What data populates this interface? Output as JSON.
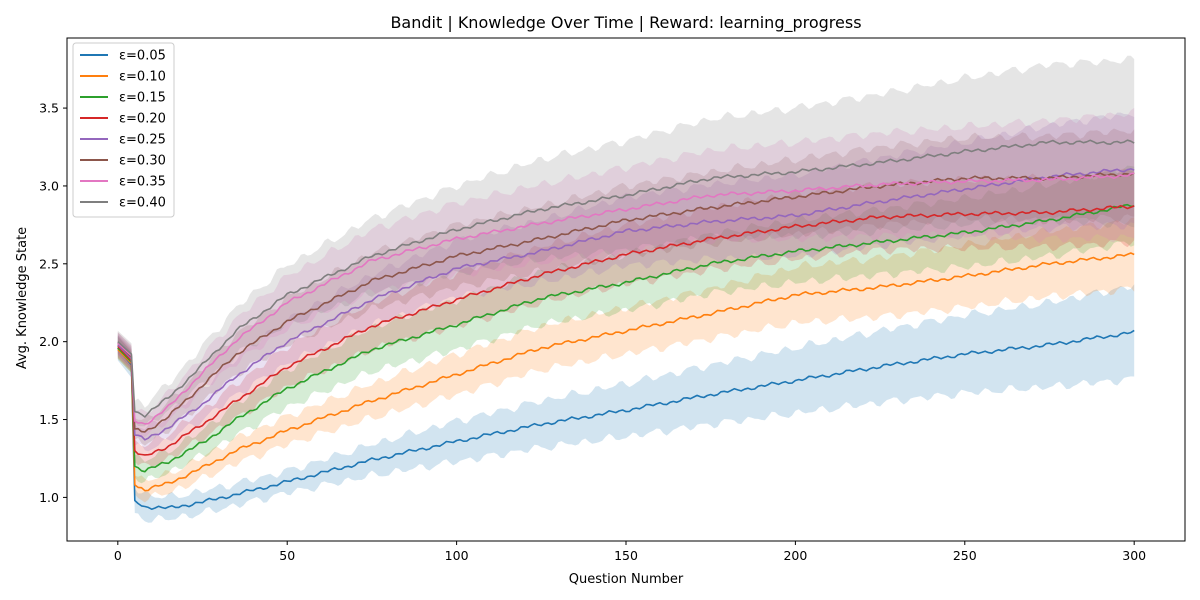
{
  "chart_data": {
    "type": "line",
    "title": "Bandit | Knowledge Over Time | Reward: learning_progress",
    "xlabel": "Question Number",
    "ylabel": "Avg. Knowledge State",
    "xlim": [
      -15,
      315
    ],
    "ylim": [
      0.72,
      3.95
    ],
    "x_ticks": [
      0,
      50,
      100,
      150,
      200,
      250,
      300
    ],
    "y_ticks": [
      1.0,
      1.5,
      2.0,
      2.5,
      3.0,
      3.5
    ],
    "y_tick_labels": [
      "1.0",
      "1.5",
      "2.0",
      "2.5",
      "3.0",
      "3.5"
    ],
    "legend_position": "top-left",
    "grid": false,
    "shaded_band": "mean ± spread per series (semi-transparent)",
    "series": [
      {
        "name": "ε=0.05",
        "color": "#1f77b4",
        "x": [
          0,
          4,
          5,
          8,
          15,
          25,
          35,
          50,
          75,
          100,
          125,
          150,
          175,
          200,
          225,
          250,
          275,
          300
        ],
        "values": [
          1.96,
          1.85,
          0.98,
          0.94,
          0.93,
          0.97,
          1.02,
          1.1,
          1.24,
          1.36,
          1.47,
          1.56,
          1.66,
          1.75,
          1.84,
          1.92,
          1.98,
          2.06
        ],
        "band": [
          0.08,
          0.08,
          0.08,
          0.08,
          0.07,
          0.07,
          0.07,
          0.07,
          0.1,
          0.13,
          0.15,
          0.17,
          0.19,
          0.21,
          0.23,
          0.25,
          0.27,
          0.3
        ]
      },
      {
        "name": "ε=0.10",
        "color": "#ff7f0e",
        "x": [
          0,
          4,
          5,
          8,
          15,
          25,
          35,
          50,
          75,
          100,
          125,
          150,
          175,
          200,
          225,
          250,
          275,
          300
        ],
        "values": [
          1.95,
          1.86,
          1.08,
          1.05,
          1.09,
          1.19,
          1.3,
          1.43,
          1.62,
          1.79,
          1.96,
          2.07,
          2.18,
          2.3,
          2.35,
          2.42,
          2.5,
          2.56
        ],
        "band": [
          0.06,
          0.06,
          0.06,
          0.06,
          0.06,
          0.07,
          0.08,
          0.09,
          0.11,
          0.13,
          0.14,
          0.15,
          0.16,
          0.18,
          0.19,
          0.2,
          0.21,
          0.22
        ]
      },
      {
        "name": "ε=0.15",
        "color": "#2ca02c",
        "x": [
          0,
          4,
          5,
          8,
          15,
          25,
          35,
          50,
          75,
          100,
          125,
          150,
          175,
          200,
          225,
          250,
          275,
          300
        ],
        "values": [
          1.96,
          1.87,
          1.2,
          1.17,
          1.23,
          1.35,
          1.5,
          1.7,
          1.95,
          2.11,
          2.28,
          2.38,
          2.5,
          2.58,
          2.64,
          2.7,
          2.78,
          2.88
        ],
        "band": [
          0.07,
          0.07,
          0.07,
          0.07,
          0.07,
          0.08,
          0.1,
          0.12,
          0.14,
          0.16,
          0.17,
          0.18,
          0.19,
          0.2,
          0.21,
          0.22,
          0.23,
          0.24
        ]
      },
      {
        "name": "ε=0.20",
        "color": "#d62728",
        "x": [
          0,
          4,
          5,
          8,
          15,
          25,
          35,
          50,
          75,
          100,
          125,
          150,
          175,
          200,
          225,
          250,
          275,
          300
        ],
        "values": [
          1.97,
          1.88,
          1.3,
          1.26,
          1.33,
          1.47,
          1.62,
          1.84,
          2.1,
          2.27,
          2.43,
          2.56,
          2.66,
          2.74,
          2.8,
          2.82,
          2.83,
          2.87
        ],
        "band": [
          0.07,
          0.07,
          0.07,
          0.07,
          0.08,
          0.09,
          0.11,
          0.13,
          0.15,
          0.17,
          0.18,
          0.19,
          0.2,
          0.21,
          0.21,
          0.22,
          0.22,
          0.23
        ]
      },
      {
        "name": "ε=0.25",
        "color": "#9467bd",
        "x": [
          0,
          4,
          5,
          8,
          15,
          25,
          35,
          50,
          75,
          100,
          125,
          150,
          175,
          200,
          225,
          250,
          275,
          300
        ],
        "values": [
          1.98,
          1.89,
          1.4,
          1.37,
          1.45,
          1.6,
          1.78,
          2.0,
          2.27,
          2.47,
          2.58,
          2.71,
          2.77,
          2.81,
          2.9,
          2.98,
          3.06,
          3.11
        ],
        "band": [
          0.07,
          0.07,
          0.07,
          0.07,
          0.08,
          0.1,
          0.12,
          0.14,
          0.16,
          0.18,
          0.2,
          0.22,
          0.24,
          0.26,
          0.28,
          0.3,
          0.33,
          0.36
        ]
      },
      {
        "name": "ε=0.30",
        "color": "#8c564b",
        "x": [
          0,
          4,
          5,
          8,
          15,
          25,
          35,
          50,
          75,
          100,
          125,
          150,
          175,
          200,
          225,
          250,
          275,
          300
        ],
        "values": [
          1.99,
          1.9,
          1.44,
          1.42,
          1.52,
          1.72,
          1.92,
          2.13,
          2.39,
          2.55,
          2.66,
          2.78,
          2.86,
          2.93,
          3.0,
          3.05,
          3.05,
          3.08
        ],
        "band": [
          0.07,
          0.07,
          0.07,
          0.07,
          0.09,
          0.11,
          0.13,
          0.15,
          0.18,
          0.2,
          0.21,
          0.22,
          0.23,
          0.24,
          0.25,
          0.26,
          0.27,
          0.28
        ]
      },
      {
        "name": "ε=0.35",
        "color": "#e377c2",
        "x": [
          0,
          4,
          5,
          8,
          15,
          25,
          35,
          50,
          75,
          100,
          125,
          150,
          175,
          200,
          225,
          250,
          275,
          300
        ],
        "values": [
          1.99,
          1.91,
          1.49,
          1.47,
          1.58,
          1.8,
          2.01,
          2.25,
          2.52,
          2.66,
          2.76,
          2.85,
          2.94,
          2.97,
          3.01,
          3.03,
          3.04,
          3.07
        ],
        "band": [
          0.07,
          0.07,
          0.07,
          0.07,
          0.09,
          0.11,
          0.14,
          0.17,
          0.2,
          0.23,
          0.25,
          0.27,
          0.29,
          0.31,
          0.33,
          0.35,
          0.38,
          0.4
        ]
      },
      {
        "name": "ε=0.40",
        "color": "#7f7f7f",
        "x": [
          0,
          4,
          5,
          8,
          15,
          25,
          35,
          50,
          75,
          100,
          125,
          150,
          175,
          200,
          225,
          250,
          275,
          300
        ],
        "values": [
          2.0,
          1.92,
          1.55,
          1.53,
          1.64,
          1.85,
          2.07,
          2.3,
          2.55,
          2.72,
          2.85,
          2.94,
          3.05,
          3.09,
          3.15,
          3.22,
          3.28,
          3.28
        ],
        "band": [
          0.07,
          0.07,
          0.07,
          0.07,
          0.09,
          0.12,
          0.15,
          0.19,
          0.24,
          0.28,
          0.32,
          0.35,
          0.38,
          0.41,
          0.44,
          0.47,
          0.5,
          0.53
        ]
      }
    ]
  }
}
